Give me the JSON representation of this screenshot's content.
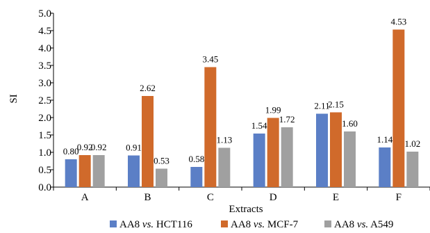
{
  "chart_data": {
    "type": "bar",
    "categories": [
      "A",
      "B",
      "C",
      "D",
      "E",
      "F"
    ],
    "series": [
      {
        "name": "AA8 vs. HCT116",
        "prefix": "AA8 ",
        "italic": "vs.",
        "suffix": " HCT116",
        "color": "#5B7FC6",
        "values": [
          0.8,
          0.91,
          0.58,
          1.54,
          2.11,
          1.14
        ],
        "labels": [
          "0.80",
          "0.91",
          "0.58",
          "1.54",
          "2.11",
          "1.14"
        ]
      },
      {
        "name": "AA8 vs. MCF-7",
        "prefix": "AA8 ",
        "italic": "vs.",
        "suffix": " MCF-7",
        "color": "#D06A2B",
        "values": [
          0.92,
          2.62,
          3.45,
          1.99,
          2.15,
          4.53
        ],
        "labels": [
          "0.92",
          "2.62",
          "3.45",
          "1.99",
          "2.15",
          "4.53"
        ]
      },
      {
        "name": "AA8 vs. A549",
        "prefix": "AA8 ",
        "italic": "vs.",
        "suffix": " A549",
        "color": "#A0A0A0",
        "values": [
          0.92,
          0.53,
          1.13,
          1.72,
          1.6,
          1.02
        ],
        "labels": [
          "0.92",
          "0.53",
          "1.13",
          "1.72",
          "1.60",
          "1.02"
        ]
      }
    ],
    "xlabel": "Extracts",
    "ylabel": "SI",
    "ylim": [
      0,
      5
    ],
    "yticks": [
      "0.0",
      "0.5",
      "1.0",
      "1.5",
      "2.0",
      "2.5",
      "3.0",
      "3.5",
      "4.0",
      "4.5",
      "5.0"
    ],
    "grid": false,
    "legend": "bottom"
  }
}
